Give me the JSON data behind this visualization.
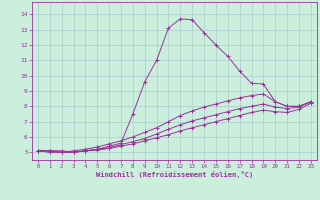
{
  "xlabel": "Windchill (Refroidissement éolien,°C)",
  "background_color": "#cceedd",
  "grid_color": "#aacccc",
  "line_color": "#993399",
  "xlim": [
    -0.5,
    23.5
  ],
  "ylim": [
    4.5,
    14.8
  ],
  "xticks": [
    0,
    1,
    2,
    3,
    4,
    5,
    6,
    7,
    8,
    9,
    10,
    11,
    12,
    13,
    14,
    15,
    16,
    17,
    18,
    19,
    20,
    21,
    22,
    23
  ],
  "yticks": [
    5,
    6,
    7,
    8,
    9,
    10,
    11,
    12,
    13,
    14
  ],
  "series": [
    {
      "x": [
        0,
        1,
        2,
        3,
        4,
        5,
        6,
        7,
        8,
        9,
        10,
        11,
        12,
        13,
        14,
        15,
        16,
        17,
        18,
        19,
        20,
        21,
        22,
        23
      ],
      "y": [
        5.1,
        5.1,
        5.1,
        5.0,
        5.1,
        5.2,
        5.4,
        5.6,
        7.5,
        9.6,
        11.0,
        13.1,
        13.7,
        13.65,
        12.8,
        12.0,
        11.25,
        10.3,
        9.5,
        9.45,
        8.3,
        8.0,
        8.0,
        8.3
      ]
    },
    {
      "x": [
        0,
        1,
        2,
        3,
        4,
        5,
        6,
        7,
        8,
        9,
        10,
        11,
        12,
        13,
        14,
        15,
        16,
        17,
        18,
        19,
        20,
        21,
        22,
        23
      ],
      "y": [
        5.1,
        5.0,
        5.0,
        5.1,
        5.2,
        5.35,
        5.55,
        5.75,
        6.0,
        6.3,
        6.6,
        7.0,
        7.4,
        7.7,
        7.95,
        8.15,
        8.35,
        8.55,
        8.7,
        8.8,
        8.3,
        8.0,
        8.0,
        8.3
      ]
    },
    {
      "x": [
        0,
        1,
        2,
        3,
        4,
        5,
        6,
        7,
        8,
        9,
        10,
        11,
        12,
        13,
        14,
        15,
        16,
        17,
        18,
        19,
        20,
        21,
        22,
        23
      ],
      "y": [
        5.1,
        5.1,
        5.0,
        5.0,
        5.1,
        5.2,
        5.3,
        5.5,
        5.7,
        5.9,
        6.2,
        6.5,
        6.8,
        7.05,
        7.25,
        7.45,
        7.65,
        7.85,
        8.0,
        8.15,
        7.95,
        7.85,
        7.95,
        8.3
      ]
    },
    {
      "x": [
        0,
        1,
        2,
        3,
        4,
        5,
        6,
        7,
        8,
        9,
        10,
        11,
        12,
        13,
        14,
        15,
        16,
        17,
        18,
        19,
        20,
        21,
        22,
        23
      ],
      "y": [
        5.1,
        5.1,
        5.0,
        5.0,
        5.1,
        5.15,
        5.25,
        5.4,
        5.55,
        5.75,
        5.95,
        6.15,
        6.4,
        6.6,
        6.8,
        7.0,
        7.2,
        7.4,
        7.6,
        7.75,
        7.65,
        7.6,
        7.8,
        8.2
      ]
    }
  ]
}
